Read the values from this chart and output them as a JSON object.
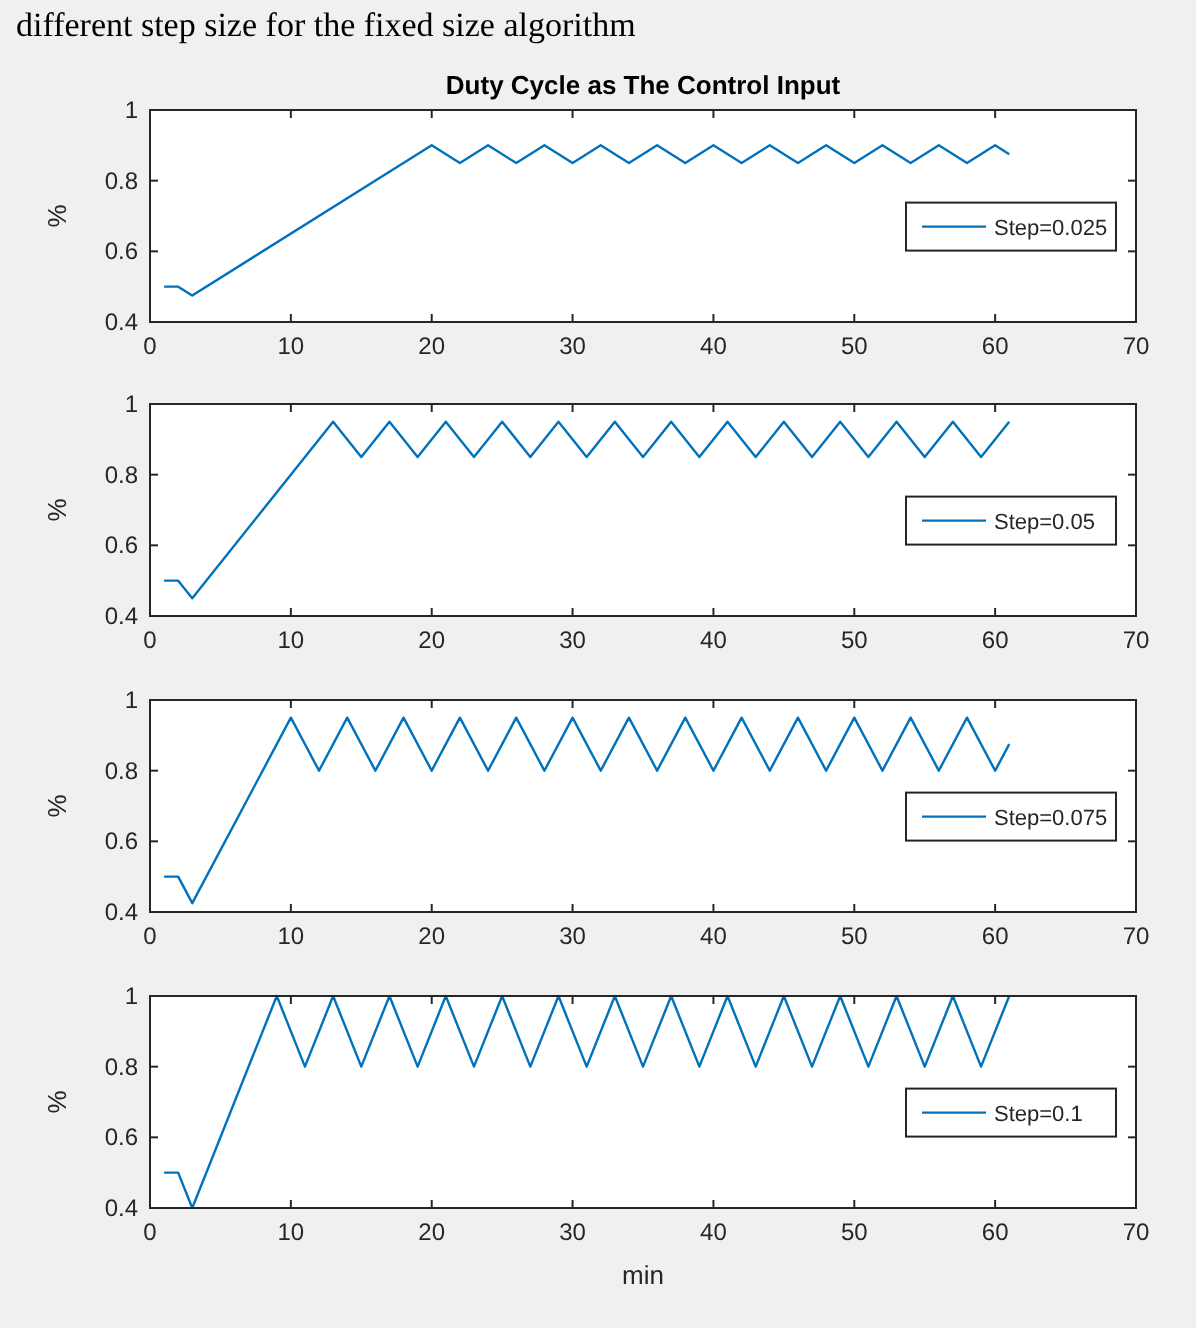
{
  "chart_data": [
    {
      "type": "line",
      "title": "Duty Cycle as The Control Input",
      "annotations": [
        "different step size for the fixed size algorithm"
      ],
      "ylabel": "%",
      "legend": "right",
      "xlim": [
        0,
        70
      ],
      "ylim": [
        0.4,
        1
      ],
      "xticks": [
        0,
        10,
        20,
        30,
        40,
        50,
        60,
        70
      ],
      "yticks": [
        0.4,
        0.6,
        0.8,
        1
      ],
      "x": [
        1,
        2,
        3,
        20,
        22,
        24,
        26,
        28,
        30,
        32,
        34,
        36,
        38,
        40,
        42,
        44,
        46,
        48,
        50,
        52,
        54,
        56,
        58,
        60,
        61
      ],
      "series": [
        {
          "name": "Step=0.025",
          "color": "#0072bd",
          "values": [
            0.5,
            0.5,
            0.475,
            0.9,
            0.85,
            0.9,
            0.85,
            0.9,
            0.85,
            0.9,
            0.85,
            0.9,
            0.85,
            0.9,
            0.85,
            0.9,
            0.85,
            0.9,
            0.85,
            0.9,
            0.85,
            0.9,
            0.85,
            0.9,
            0.875
          ]
        }
      ]
    },
    {
      "type": "line",
      "ylabel": "%",
      "legend": "right",
      "xlim": [
        0,
        70
      ],
      "ylim": [
        0.4,
        1
      ],
      "xticks": [
        0,
        10,
        20,
        30,
        40,
        50,
        60,
        70
      ],
      "yticks": [
        0.4,
        0.6,
        0.8,
        1
      ],
      "x": [
        1,
        2,
        3,
        13,
        15,
        17,
        19,
        21,
        23,
        25,
        27,
        29,
        31,
        33,
        35,
        37,
        39,
        41,
        43,
        45,
        47,
        49,
        51,
        53,
        55,
        57,
        59,
        61
      ],
      "series": [
        {
          "name": "Step=0.05",
          "color": "#0072bd",
          "values": [
            0.5,
            0.5,
            0.45,
            0.95,
            0.85,
            0.95,
            0.85,
            0.95,
            0.85,
            0.95,
            0.85,
            0.95,
            0.85,
            0.95,
            0.85,
            0.95,
            0.85,
            0.95,
            0.85,
            0.95,
            0.85,
            0.95,
            0.85,
            0.95,
            0.85,
            0.95,
            0.85,
            0.95
          ]
        }
      ]
    },
    {
      "type": "line",
      "ylabel": "%",
      "legend": "right",
      "xlim": [
        0,
        70
      ],
      "ylim": [
        0.4,
        1
      ],
      "xticks": [
        0,
        10,
        20,
        30,
        40,
        50,
        60,
        70
      ],
      "yticks": [
        0.4,
        0.6,
        0.8,
        1
      ],
      "x": [
        1,
        2,
        3,
        10,
        12,
        14,
        16,
        18,
        20,
        22,
        24,
        26,
        28,
        30,
        32,
        34,
        36,
        38,
        40,
        42,
        44,
        46,
        48,
        50,
        52,
        54,
        56,
        58,
        60,
        61
      ],
      "series": [
        {
          "name": "Step=0.075",
          "color": "#0072bd",
          "values": [
            0.5,
            0.5,
            0.425,
            0.95,
            0.8,
            0.95,
            0.8,
            0.95,
            0.8,
            0.95,
            0.8,
            0.95,
            0.8,
            0.95,
            0.8,
            0.95,
            0.8,
            0.95,
            0.8,
            0.95,
            0.8,
            0.95,
            0.8,
            0.95,
            0.8,
            0.95,
            0.8,
            0.95,
            0.8,
            0.875
          ]
        }
      ]
    },
    {
      "type": "line",
      "ylabel": "%",
      "xlabel": "min",
      "legend": "right",
      "xlim": [
        0,
        70
      ],
      "ylim": [
        0.4,
        1
      ],
      "xticks": [
        0,
        10,
        20,
        30,
        40,
        50,
        60,
        70
      ],
      "yticks": [
        0.4,
        0.6,
        0.8,
        1
      ],
      "x": [
        1,
        2,
        3,
        9,
        11,
        13,
        15,
        17,
        19,
        21,
        23,
        25,
        27,
        29,
        31,
        33,
        35,
        37,
        39,
        41,
        43,
        45,
        47,
        49,
        51,
        53,
        55,
        57,
        59,
        61
      ],
      "series": [
        {
          "name": "Step=0.1",
          "color": "#0072bd",
          "values": [
            0.5,
            0.5,
            0.4,
            1,
            0.8,
            1,
            0.8,
            1,
            0.8,
            1,
            0.8,
            1,
            0.8,
            1,
            0.8,
            1,
            0.8,
            1,
            0.8,
            1,
            0.8,
            1,
            0.8,
            1,
            0.8,
            1,
            0.8,
            1,
            0.8,
            1
          ]
        }
      ]
    }
  ]
}
